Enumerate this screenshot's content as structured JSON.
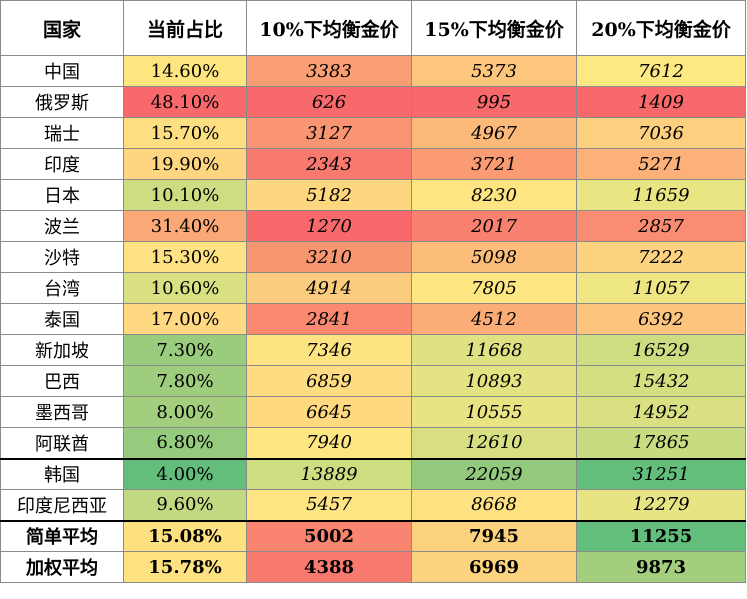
{
  "headers": [
    "国家",
    "当前占比",
    "10%下均衡金价",
    "15%下均衡金价",
    "20%下均衡金价"
  ],
  "rows": [
    {
      "country": "中国",
      "share": "14.60%",
      "p10": "3383",
      "p15": "5373",
      "p20": "7612"
    },
    {
      "country": "俄罗斯",
      "share": "48.10%",
      "p10": "626",
      "p15": "995",
      "p20": "1409"
    },
    {
      "country": "瑞士",
      "share": "15.70%",
      "p10": "3127",
      "p15": "4967",
      "p20": "7036"
    },
    {
      "country": "印度",
      "share": "19.90%",
      "p10": "2343",
      "p15": "3721",
      "p20": "5271"
    },
    {
      "country": "日本",
      "share": "10.10%",
      "p10": "5182",
      "p15": "8230",
      "p20": "11659"
    },
    {
      "country": "波兰",
      "share": "31.40%",
      "p10": "1270",
      "p15": "2017",
      "p20": "2857"
    },
    {
      "country": "沙特",
      "share": "15.30%",
      "p10": "3210",
      "p15": "5098",
      "p20": "7222"
    },
    {
      "country": "台湾",
      "share": "10.60%",
      "p10": "4914",
      "p15": "7805",
      "p20": "11057"
    },
    {
      "country": "泰国",
      "share": "17.00%",
      "p10": "2841",
      "p15": "4512",
      "p20": "6392"
    },
    {
      "country": "新加坡",
      "share": "7.30%",
      "p10": "7346",
      "p15": "11668",
      "p20": "16529"
    },
    {
      "country": "巴西",
      "share": "7.80%",
      "p10": "6859",
      "p15": "10893",
      "p20": "15432"
    },
    {
      "country": "墨西哥",
      "share": "8.00%",
      "p10": "6645",
      "p15": "10555",
      "p20": "14952"
    },
    {
      "country": "阿联酋",
      "share": "6.80%",
      "p10": "7940",
      "p15": "12610",
      "p20": "17865"
    },
    {
      "country": "韩国",
      "share": "4.00%",
      "p10": "13889",
      "p15": "22059",
      "p20": "31251"
    },
    {
      "country": "印度尼西亚",
      "share": "9.60%",
      "p10": "5457",
      "p15": "8668",
      "p20": "12279"
    },
    {
      "country": "简单平均",
      "share": "15.08%",
      "p10": "5002",
      "p15": "7945",
      "p20": "11255"
    },
    {
      "country": "加权平均",
      "share": "15.78%",
      "p10": "4388",
      "p15": "6969",
      "p20": "9873"
    }
  ],
  "colors": [
    [
      "#fde57f",
      "#fa9e73",
      "#fdc67c",
      "#fee882"
    ],
    [
      "#f8696b",
      "#f8696b",
      "#f8696b",
      "#f8696b"
    ],
    [
      "#fdde80",
      "#f99572",
      "#fcb97a",
      "#fcd07e"
    ],
    [
      "#fed580",
      "#f87a6e",
      "#fb9b74",
      "#fdb17a"
    ],
    [
      "#cedd82",
      "#fed680",
      "#fee582",
      "#eae583"
    ],
    [
      "#f9a876",
      "#f8696b",
      "#f8826f",
      "#f98c71"
    ],
    [
      "#fee182",
      "#f99672",
      "#fcbd7b",
      "#fdd380"
    ],
    [
      "#d9e082",
      "#fccc7e",
      "#fee683",
      "#ede683"
    ],
    [
      "#fed981",
      "#f98a70",
      "#fbad78",
      "#fcc47d"
    ],
    [
      "#9acc7d",
      "#fee382",
      "#dee283",
      "#cddd82"
    ],
    [
      "#9fcd7e",
      "#fedc81",
      "#e4e383",
      "#d4df82"
    ],
    [
      "#a2ce7e",
      "#fed980",
      "#e8e483",
      "#d8e082"
    ],
    [
      "#95cb7d",
      "#fee682",
      "#d7df82",
      "#c7dc81"
    ],
    [
      "#63be7b",
      "#ccdd82",
      "#92c97d",
      "#63be7b"
    ],
    [
      "#c2d981",
      "#fee583",
      "#fee282",
      "#e6e483"
    ],
    [
      "#fde07f",
      "#f98470",
      "#fcd17e",
      "#63be7b"
    ],
    [
      "#fee282",
      "#f87a6e",
      "#fdd380",
      "#a2ce7e"
    ]
  ]
}
